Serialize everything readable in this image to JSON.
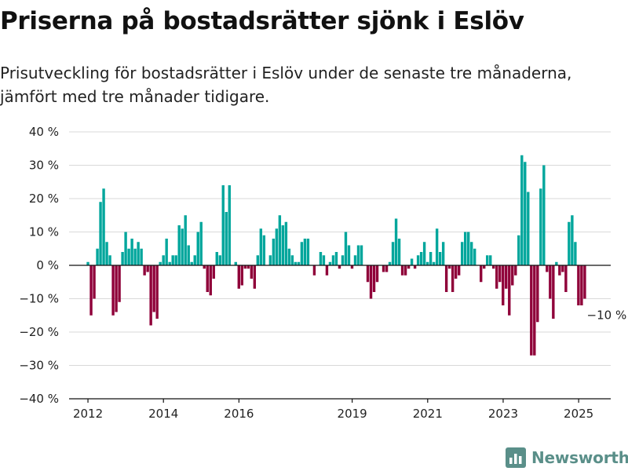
{
  "header": {
    "title": "Priserna på bostadsrätter sjönk i Eslöv",
    "subtitle": "Prisutveckling för bostadsrätter i Eslöv under de senaste tre månaderna, jämfört med tre månader tidigare."
  },
  "brand": {
    "name": "Newsworthy",
    "icon": "newsworthy-logo-icon",
    "color": "#5a8f89"
  },
  "colors": {
    "positive": "#00a69c",
    "negative": "#8f0039",
    "grid": "#d9d9d9",
    "zero_line": "#111111"
  },
  "chart_data": {
    "type": "bar",
    "ylim": [
      -40,
      40
    ],
    "yticks": [
      40,
      30,
      20,
      10,
      0,
      -10,
      -20,
      -30,
      -40
    ],
    "ytick_labels": [
      "40 %",
      "30 %",
      "20 %",
      "10 %",
      "0 %",
      "−10 %",
      "−20 %",
      "−30 %",
      "−40 %"
    ],
    "xlim": [
      2011.5,
      2025.85
    ],
    "xticks": [
      2012,
      2014,
      2016,
      2019,
      2021,
      2023,
      2025
    ],
    "xtick_labels": [
      "2012",
      "2014",
      "2016",
      "2019",
      "2021",
      "2023",
      "2025"
    ],
    "start": 2012.0,
    "step": 0.0833,
    "values": [
      1,
      -15,
      -10,
      5,
      19,
      23,
      7,
      3,
      -15,
      -14,
      -11,
      4,
      10,
      5,
      8,
      5,
      7,
      5,
      -3,
      -2,
      -18,
      -14,
      -16,
      1,
      3,
      8,
      1,
      3,
      3,
      12,
      11,
      15,
      6,
      1,
      3,
      10,
      13,
      -1,
      -8,
      -9,
      -4,
      4,
      3,
      24,
      16,
      24,
      0,
      1,
      -7,
      -6,
      -1,
      -1,
      -4,
      -7,
      3,
      11,
      9,
      0,
      3,
      8,
      11,
      15,
      12,
      13,
      5,
      3,
      1,
      1,
      7,
      8,
      8,
      0,
      -3,
      0,
      4,
      3,
      -3,
      1,
      3,
      4,
      -1,
      3,
      10,
      6,
      -1,
      3,
      6,
      6,
      0,
      -5,
      -10,
      -8,
      -5,
      0,
      -2,
      -2,
      1,
      7,
      14,
      8,
      -3,
      -3,
      -1,
      2,
      -1,
      3,
      4,
      7,
      1,
      4,
      1,
      11,
      4,
      7,
      -8,
      -1,
      -8,
      -4,
      -3,
      7,
      10,
      10,
      7,
      5,
      0,
      -5,
      -1,
      3,
      3,
      -1,
      -7,
      -5,
      -12,
      -7,
      -15,
      -6,
      -3,
      9,
      33,
      31,
      22,
      -27,
      -27,
      -17,
      23,
      30,
      -2,
      -10,
      -16,
      1,
      -3,
      -2,
      -8,
      13,
      15,
      7,
      -12,
      -12,
      -10
    ],
    "annotations": [
      {
        "text": "−10 %"
      }
    ]
  }
}
